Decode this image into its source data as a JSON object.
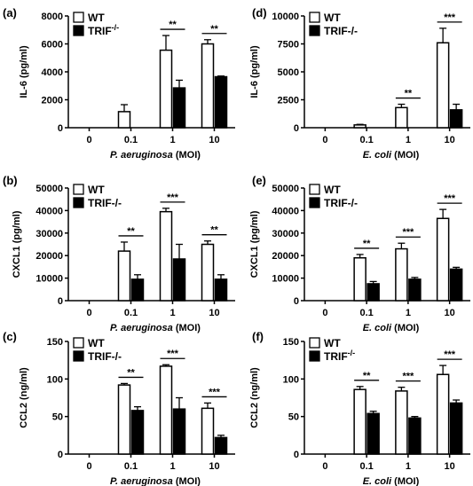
{
  "colors": {
    "wt_fill": "#ffffff",
    "trif_fill": "#000000",
    "axis": "#000000"
  },
  "chart_data": [
    {
      "panel": "(a)",
      "type": "bar",
      "categories": [
        "0",
        "0.1",
        "1",
        "10"
      ],
      "ylabel": "IL-6 (pg/ml)",
      "xlabel_italic": "P. aeruginosa",
      "xlabel_rest": " (MOI)",
      "ylim": [
        0,
        8000
      ],
      "yticks": [
        0,
        2000,
        4000,
        6000,
        8000
      ],
      "legend": {
        "placement": "top-left",
        "labels": [
          "WT",
          "TRIF"
        ],
        "sup": [
          "",
          "-/-"
        ]
      },
      "series": [
        {
          "name": "WT",
          "values": [
            0,
            1150,
            5550,
            6000
          ],
          "errors": [
            0,
            500,
            1050,
            300
          ]
        },
        {
          "name": "TRIF-/-",
          "values": [
            0,
            0,
            2850,
            3650
          ],
          "errors": [
            0,
            0,
            550,
            50
          ]
        }
      ],
      "significance": [
        {
          "category": "1",
          "label": "**"
        },
        {
          "category": "10",
          "label": "**"
        }
      ]
    },
    {
      "panel": "(b)",
      "type": "bar",
      "categories": [
        "0",
        "0.1",
        "1",
        "10"
      ],
      "ylabel": "CXCL1 (pg/ml)",
      "xlabel_italic": "P. aeruginosa",
      "xlabel_rest": " (MOI)",
      "ylim": [
        0,
        50000
      ],
      "yticks": [
        0,
        10000,
        20000,
        30000,
        40000,
        50000
      ],
      "legend": {
        "placement": "top-left",
        "labels": [
          "WT",
          "TRIF-/-"
        ],
        "sup": [
          "",
          ""
        ]
      },
      "series": [
        {
          "name": "WT",
          "values": [
            0,
            22000,
            39500,
            25000
          ],
          "errors": [
            0,
            4000,
            1500,
            1500
          ]
        },
        {
          "name": "TRIF-/-",
          "values": [
            0,
            9500,
            18500,
            9500
          ],
          "errors": [
            0,
            2000,
            6500,
            2000
          ]
        }
      ],
      "significance": [
        {
          "category": "0.1",
          "label": "**"
        },
        {
          "category": "1",
          "label": "***"
        },
        {
          "category": "10",
          "label": "**"
        }
      ]
    },
    {
      "panel": "(c)",
      "type": "bar",
      "categories": [
        "0",
        "0.1",
        "1",
        "10"
      ],
      "ylabel": "CCL2 (ng/ml)",
      "xlabel_italic": "P. aeruginosa",
      "xlabel_rest": " (MOI)",
      "ylim": [
        0,
        150
      ],
      "yticks": [
        0,
        50,
        100,
        150
      ],
      "legend": {
        "placement": "top-left",
        "labels": [
          "WT",
          "TRIF-/-"
        ],
        "sup": [
          "",
          ""
        ]
      },
      "series": [
        {
          "name": "WT",
          "values": [
            0,
            92,
            117,
            61
          ],
          "errors": [
            0,
            2,
            2,
            7
          ]
        },
        {
          "name": "TRIF-/-",
          "values": [
            0,
            58,
            60,
            22
          ],
          "errors": [
            0,
            5,
            15,
            3
          ]
        }
      ],
      "significance": [
        {
          "category": "0.1",
          "label": "**"
        },
        {
          "category": "1",
          "label": "***"
        },
        {
          "category": "10",
          "label": "***"
        }
      ]
    },
    {
      "panel": "(d)",
      "type": "bar",
      "categories": [
        "0",
        "0.1",
        "1",
        "10"
      ],
      "ylabel": "IL-6 (pg/ml)",
      "xlabel_italic": "E. coli",
      "xlabel_rest": " (MOI)",
      "ylim": [
        0,
        10000
      ],
      "yticks": [
        0,
        2500,
        5000,
        7500,
        10000
      ],
      "legend": {
        "placement": "top-left",
        "labels": [
          "WT",
          "TRIF-/-"
        ],
        "sup": [
          "",
          ""
        ]
      },
      "series": [
        {
          "name": "WT",
          "values": [
            0,
            250,
            1800,
            7600
          ],
          "errors": [
            0,
            50,
            300,
            1300
          ]
        },
        {
          "name": "TRIF-/-",
          "values": [
            0,
            0,
            0,
            1600
          ],
          "errors": [
            0,
            0,
            0,
            500
          ]
        }
      ],
      "significance": [
        {
          "category": "1",
          "label": "**"
        },
        {
          "category": "10",
          "label": "***"
        }
      ]
    },
    {
      "panel": "(e)",
      "type": "bar",
      "categories": [
        "0",
        "0.1",
        "1",
        "10"
      ],
      "ylabel": "CXCL1 (pg/ml)",
      "xlabel_italic": "E. coli",
      "xlabel_rest": " (MOI)",
      "ylim": [
        0,
        50000
      ],
      "yticks": [
        0,
        10000,
        20000,
        30000,
        40000,
        50000
      ],
      "legend": {
        "placement": "top-left",
        "labels": [
          "WT",
          "TRIF-/-"
        ],
        "sup": [
          "",
          ""
        ]
      },
      "series": [
        {
          "name": "WT",
          "values": [
            0,
            19000,
            23000,
            36500
          ],
          "errors": [
            0,
            1500,
            2500,
            4000
          ]
        },
        {
          "name": "TRIF-/-",
          "values": [
            0,
            7500,
            9500,
            14000
          ],
          "errors": [
            0,
            1000,
            800,
            800
          ]
        }
      ],
      "significance": [
        {
          "category": "0.1",
          "label": "**"
        },
        {
          "category": "1",
          "label": "***"
        },
        {
          "category": "10",
          "label": "***"
        }
      ]
    },
    {
      "panel": "(f)",
      "type": "bar",
      "categories": [
        "0",
        "0.1",
        "1",
        "10"
      ],
      "ylabel": "CCL2 (ng/ml)",
      "xlabel_italic": "E. coli",
      "xlabel_rest": " (MOI)",
      "ylim": [
        0,
        150
      ],
      "yticks": [
        0,
        50,
        100,
        150
      ],
      "legend": {
        "placement": "top-left",
        "labels": [
          "WT",
          "TRIF"
        ],
        "sup": [
          "",
          "-/-"
        ]
      },
      "series": [
        {
          "name": "WT",
          "values": [
            0,
            86,
            84,
            106
          ],
          "errors": [
            0,
            4,
            5,
            12
          ]
        },
        {
          "name": "TRIF-/-",
          "values": [
            0,
            54,
            48,
            68
          ],
          "errors": [
            0,
            3,
            2,
            4
          ]
        }
      ],
      "significance": [
        {
          "category": "0.1",
          "label": "**"
        },
        {
          "category": "1",
          "label": "***"
        },
        {
          "category": "10",
          "label": "***"
        }
      ]
    }
  ]
}
